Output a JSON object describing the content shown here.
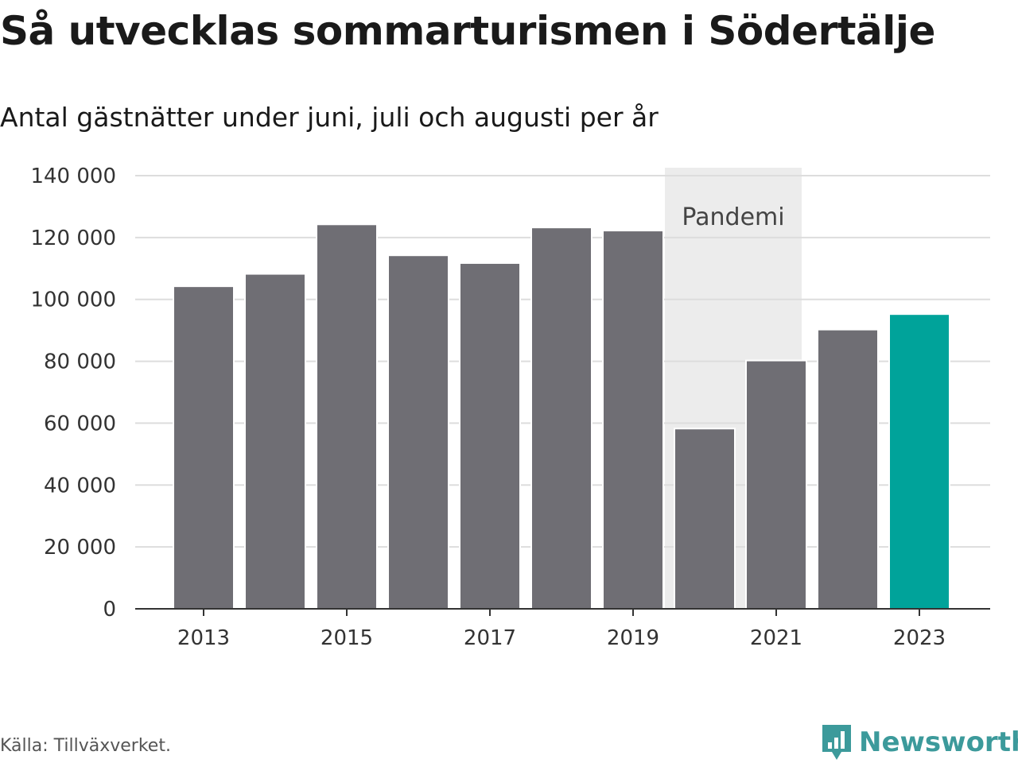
{
  "title": "Så utvecklas sommarturismen i Södertälje",
  "subtitle": "Antal gästnätter under juni, juli och augusti per år",
  "source": "Källa: Tillväxverket.",
  "brand": "Newsworthy",
  "colors": {
    "bar": "#6f6e74",
    "highlight": "#00a39a",
    "band": "#ececec",
    "grid": "#dddddd",
    "axis": "#333333",
    "brand": "#3c9a9b"
  },
  "chart_data": {
    "type": "bar",
    "categories": [
      "2013",
      "2014",
      "2015",
      "2016",
      "2017",
      "2018",
      "2019",
      "2020",
      "2021",
      "2022",
      "2023"
    ],
    "values": [
      104000,
      108000,
      124000,
      114000,
      111500,
      123000,
      122000,
      58000,
      80000,
      90000,
      95000
    ],
    "highlight_category": "2023",
    "x_tick_labels": [
      "2013",
      "2015",
      "2017",
      "2019",
      "2021",
      "2023"
    ],
    "y_ticks": [
      0,
      20000,
      40000,
      60000,
      80000,
      100000,
      120000,
      140000
    ],
    "y_tick_labels": [
      "0",
      "20 000",
      "40 000",
      "60 000",
      "80 000",
      "100 000",
      "120 000",
      "140 000"
    ],
    "ylim": [
      0,
      140000
    ],
    "grid": true,
    "annotation": {
      "label": "Pandemi",
      "from_category": "2020",
      "to_category": "2021"
    }
  }
}
